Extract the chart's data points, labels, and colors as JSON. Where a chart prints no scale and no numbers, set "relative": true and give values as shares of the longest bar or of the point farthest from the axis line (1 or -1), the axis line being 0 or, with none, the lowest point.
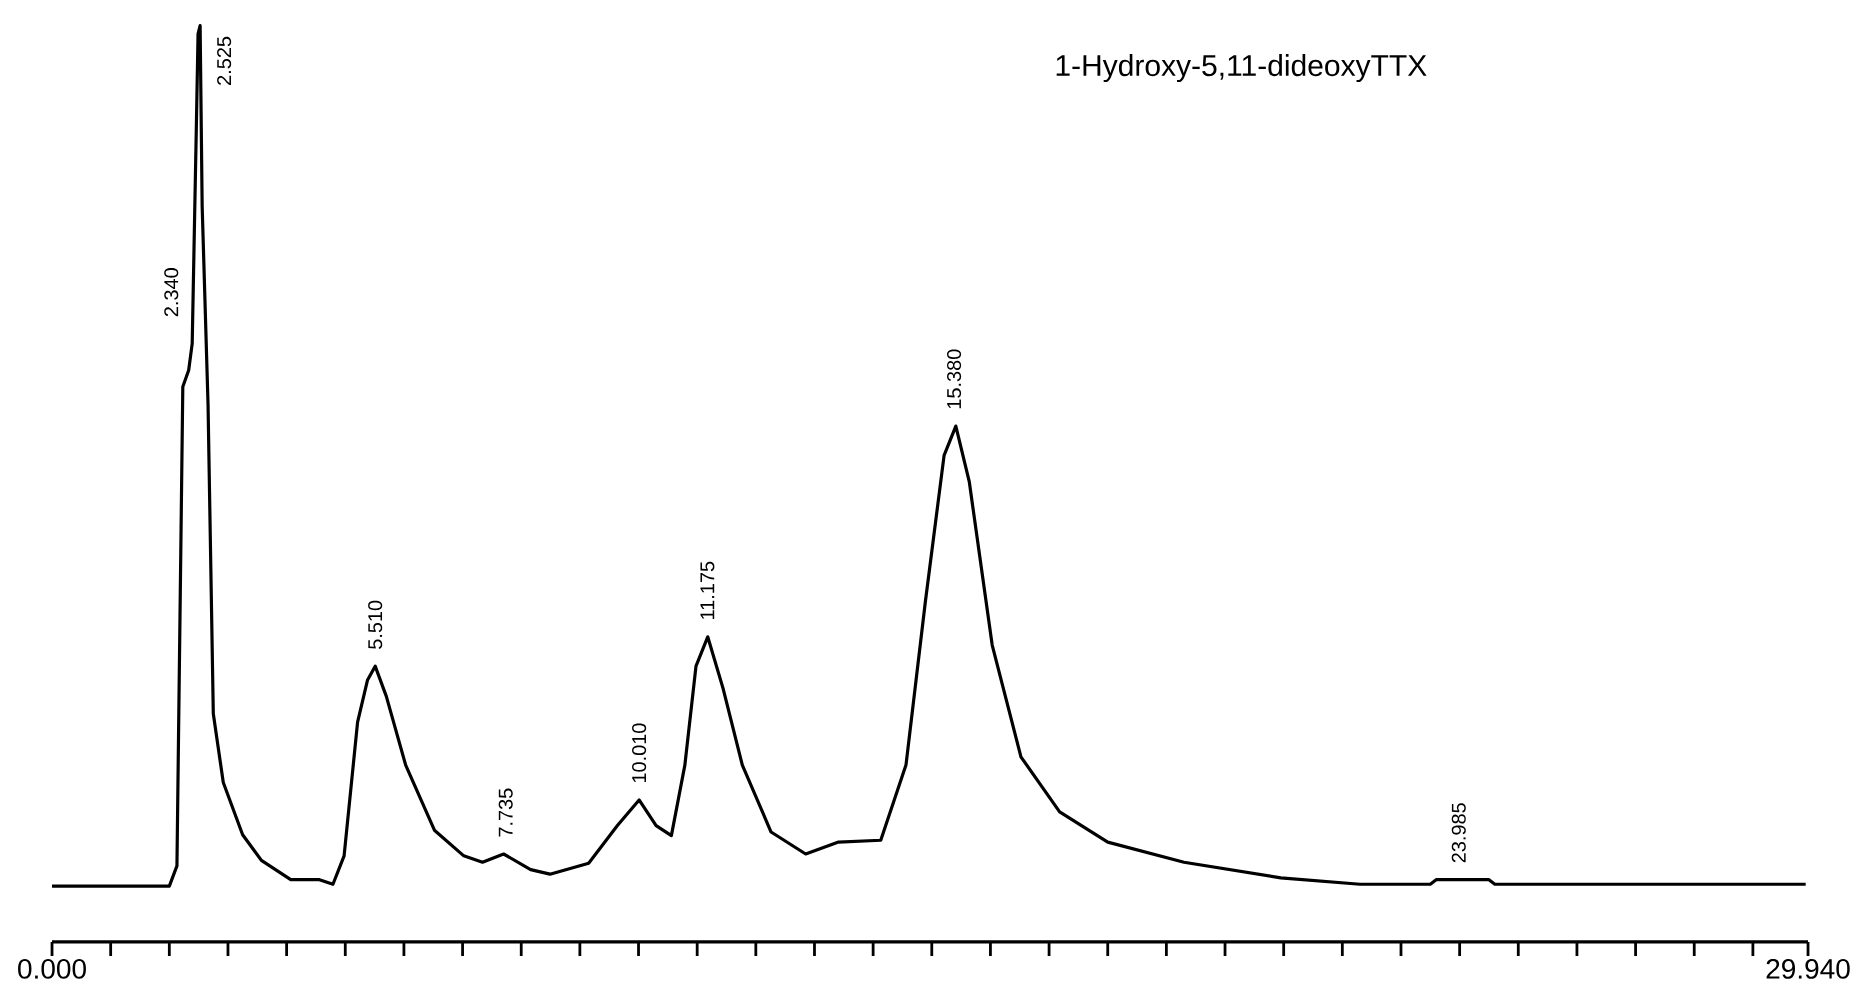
{
  "chart_data": {
    "type": "line",
    "title": "1-Hydroxy-5,11-dideoxyTTX",
    "relative": true,
    "x": [
      0,
      2.0,
      2.13,
      2.23,
      2.33,
      2.39,
      2.46,
      2.49,
      2.525,
      2.56,
      2.66,
      2.75,
      2.92,
      3.25,
      3.57,
      4.07,
      4.56,
      4.79,
      4.98,
      5.21,
      5.38,
      5.51,
      5.7,
      6.03,
      6.52,
      7.02,
      7.34,
      7.7,
      8.16,
      8.49,
      9.15,
      9.64,
      10.01,
      10.3,
      10.56,
      10.79,
      10.98,
      11.18,
      11.44,
      11.77,
      12.26,
      12.85,
      13.41,
      14.13,
      14.56,
      14.89,
      15.21,
      15.41,
      15.64,
      16.03,
      16.52,
      17.18,
      18.0,
      19.3,
      20.95,
      22.3,
      23.5,
      23.6,
      24.5,
      24.6,
      29.9
    ],
    "series": [
      {
        "color": "#000000",
        "values": [
          0.061,
          0.061,
          0.083,
          0.606,
          0.624,
          0.653,
          0.887,
          0.991,
          1.0,
          0.803,
          0.587,
          0.249,
          0.174,
          0.117,
          0.089,
          0.068,
          0.068,
          0.063,
          0.094,
          0.24,
          0.286,
          0.301,
          0.268,
          0.193,
          0.122,
          0.094,
          0.087,
          0.096,
          0.079,
          0.074,
          0.086,
          0.127,
          0.155,
          0.127,
          0.116,
          0.193,
          0.301,
          0.333,
          0.277,
          0.193,
          0.12,
          0.096,
          0.109,
          0.111,
          0.193,
          0.371,
          0.531,
          0.563,
          0.502,
          0.324,
          0.202,
          0.142,
          0.109,
          0.087,
          0.07,
          0.063,
          0.063,
          0.068,
          0.068,
          0.063,
          0.063
        ]
      }
    ],
    "xlim": [
      0,
      29.94
    ],
    "xticks": [
      {
        "value": 0,
        "label": "0.000"
      },
      {
        "value": 1,
        "label": null
      },
      {
        "value": 2,
        "label": null
      },
      {
        "value": 3,
        "label": null
      },
      {
        "value": 4,
        "label": null
      },
      {
        "value": 5,
        "label": null
      },
      {
        "value": 6,
        "label": null
      },
      {
        "value": 7,
        "label": null
      },
      {
        "value": 8,
        "label": null
      },
      {
        "value": 9,
        "label": null
      },
      {
        "value": 10,
        "label": null
      },
      {
        "value": 11,
        "label": null
      },
      {
        "value": 12,
        "label": null
      },
      {
        "value": 13,
        "label": null
      },
      {
        "value": 14,
        "label": null
      },
      {
        "value": 15,
        "label": null
      },
      {
        "value": 16,
        "label": null
      },
      {
        "value": 17,
        "label": null
      },
      {
        "value": 18,
        "label": null
      },
      {
        "value": 19,
        "label": null
      },
      {
        "value": 20,
        "label": null
      },
      {
        "value": 21,
        "label": null
      },
      {
        "value": 22,
        "label": null
      },
      {
        "value": 23,
        "label": null
      },
      {
        "value": 24,
        "label": null
      },
      {
        "value": 25,
        "label": null
      },
      {
        "value": 26,
        "label": null
      },
      {
        "value": 27,
        "label": null
      },
      {
        "value": 28,
        "label": null
      },
      {
        "value": 29,
        "label": null
      },
      {
        "value": 29.94,
        "label": "29.940"
      }
    ],
    "annotations": [
      {
        "text": "2.340",
        "x": 2.34,
        "y": 0.653
      },
      {
        "text": "2.525",
        "x": 2.525,
        "y": 1.0
      },
      {
        "text": "5.510",
        "x": 5.51,
        "y": 0.301
      },
      {
        "text": "7.735",
        "x": 7.735,
        "y": 0.096
      },
      {
        "text": "10.010",
        "x": 10.01,
        "y": 0.155
      },
      {
        "text": "11.175",
        "x": 11.175,
        "y": 0.333
      },
      {
        "text": "15.380",
        "x": 15.38,
        "y": 0.563
      },
      {
        "text": "23.985",
        "x": 23.985,
        "y": 0.068
      }
    ]
  }
}
